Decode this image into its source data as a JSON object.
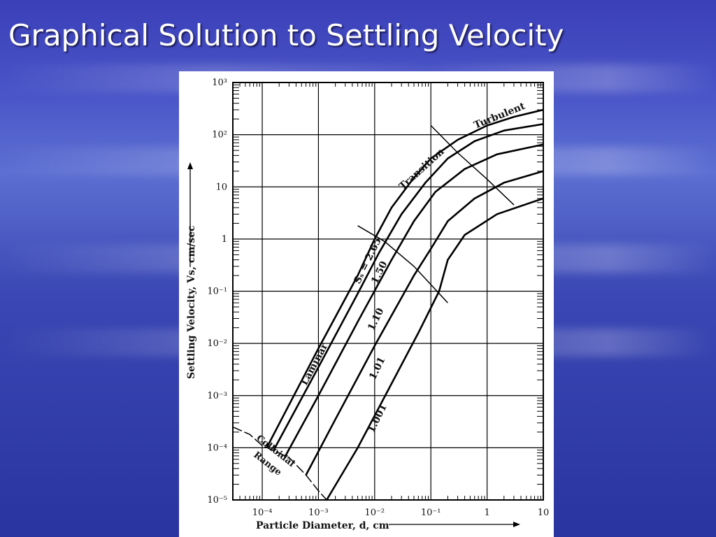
{
  "slide": {
    "title": "Graphical Solution to Settling Velocity"
  },
  "chart_data": {
    "type": "line",
    "xlabel": "Particle Diameter, d, cm",
    "ylabel": "Settling Velocity, Vs, cm/sec",
    "x_scale": "log",
    "y_scale": "log",
    "xlim": [
      3e-05,
      10
    ],
    "ylim": [
      1e-05,
      1000
    ],
    "x_ticks": [
      {
        "value": 0.0001,
        "label": "10⁻⁴"
      },
      {
        "value": 0.001,
        "label": "10⁻³"
      },
      {
        "value": 0.01,
        "label": "10⁻²"
      },
      {
        "value": 0.1,
        "label": "10⁻¹"
      },
      {
        "value": 1,
        "label": "1"
      },
      {
        "value": 10,
        "label": "10"
      }
    ],
    "y_ticks": [
      {
        "value": 1e-05,
        "label": "10⁻⁵"
      },
      {
        "value": 0.0001,
        "label": "10⁻⁴"
      },
      {
        "value": 0.001,
        "label": "10⁻³"
      },
      {
        "value": 0.01,
        "label": "10⁻²"
      },
      {
        "value": 0.1,
        "label": "10⁻¹"
      },
      {
        "value": 1,
        "label": "1"
      },
      {
        "value": 10,
        "label": "10"
      },
      {
        "value": 100,
        "label": "10²"
      },
      {
        "value": 1000,
        "label": "10³"
      }
    ],
    "grid": true,
    "series": [
      {
        "name": "Sₛ = 2.65",
        "label": "Sₛ = 2.65",
        "points": [
          [
            0.00012,
            0.0001
          ],
          [
            0.001,
            0.008
          ],
          [
            0.005,
            0.2
          ],
          [
            0.01,
            1.0
          ],
          [
            0.02,
            4
          ],
          [
            0.05,
            15
          ],
          [
            0.1,
            35
          ],
          [
            0.3,
            80
          ],
          [
            1,
            150
          ],
          [
            3,
            220
          ],
          [
            10,
            300
          ]
        ]
      },
      {
        "name": "1.50",
        "label": "1.50",
        "points": [
          [
            0.00016,
            9e-05
          ],
          [
            0.001,
            0.0035
          ],
          [
            0.005,
            0.09
          ],
          [
            0.012,
            0.55
          ],
          [
            0.03,
            3
          ],
          [
            0.08,
            12
          ],
          [
            0.2,
            35
          ],
          [
            0.6,
            75
          ],
          [
            2,
            120
          ],
          [
            10,
            160
          ]
        ]
      },
      {
        "name": "1.10",
        "label": "1.10",
        "points": [
          [
            0.00025,
            6.5e-05
          ],
          [
            0.001,
            0.001
          ],
          [
            0.005,
            0.026
          ],
          [
            0.02,
            0.4
          ],
          [
            0.05,
            2.2
          ],
          [
            0.12,
            8
          ],
          [
            0.4,
            22
          ],
          [
            1.5,
            42
          ],
          [
            10,
            65
          ]
        ]
      },
      {
        "name": "1.01",
        "label": "1.01",
        "points": [
          [
            0.0006,
            3e-05
          ],
          [
            0.002,
            0.00035
          ],
          [
            0.01,
            0.009
          ],
          [
            0.05,
            0.2
          ],
          [
            0.1,
            0.65
          ],
          [
            0.2,
            2.2
          ],
          [
            0.6,
            6
          ],
          [
            2,
            12
          ],
          [
            10,
            20
          ]
        ]
      },
      {
        "name": "1.001",
        "label": "1.001",
        "points": [
          [
            0.0014,
            1e-05
          ],
          [
            0.005,
            0.0001
          ],
          [
            0.02,
            0.0017
          ],
          [
            0.06,
            0.016
          ],
          [
            0.14,
            0.1
          ],
          [
            0.2,
            0.4
          ],
          [
            0.4,
            1.2
          ],
          [
            1.5,
            3
          ],
          [
            10,
            6
          ]
        ]
      }
    ],
    "annotations": {
      "laminar": "Laminar",
      "transition": "Transition",
      "turbulent": "Turbulent",
      "colloidal_line1": "Colloidal",
      "colloidal_line2": "Range"
    },
    "boundaries": {
      "colloidal": [
        [
          3e-05,
          0.00025
        ],
        [
          6e-05,
          0.00018
        ],
        [
          0.0001,
          0.00011
        ],
        [
          0.0003,
          6.5e-05
        ],
        [
          0.0006,
          3e-05
        ],
        [
          0.001,
          1.5e-05
        ],
        [
          0.0014,
          1e-05
        ]
      ],
      "laminar_transition": [
        [
          0.005,
          1.8
        ],
        [
          0.015,
          0.9
        ],
        [
          0.05,
          0.3
        ],
        [
          0.2,
          0.06
        ]
      ],
      "transition_turbulent": [
        [
          0.1,
          150
        ],
        [
          0.3,
          45
        ],
        [
          1,
          14
        ],
        [
          3,
          4.5
        ]
      ]
    }
  }
}
